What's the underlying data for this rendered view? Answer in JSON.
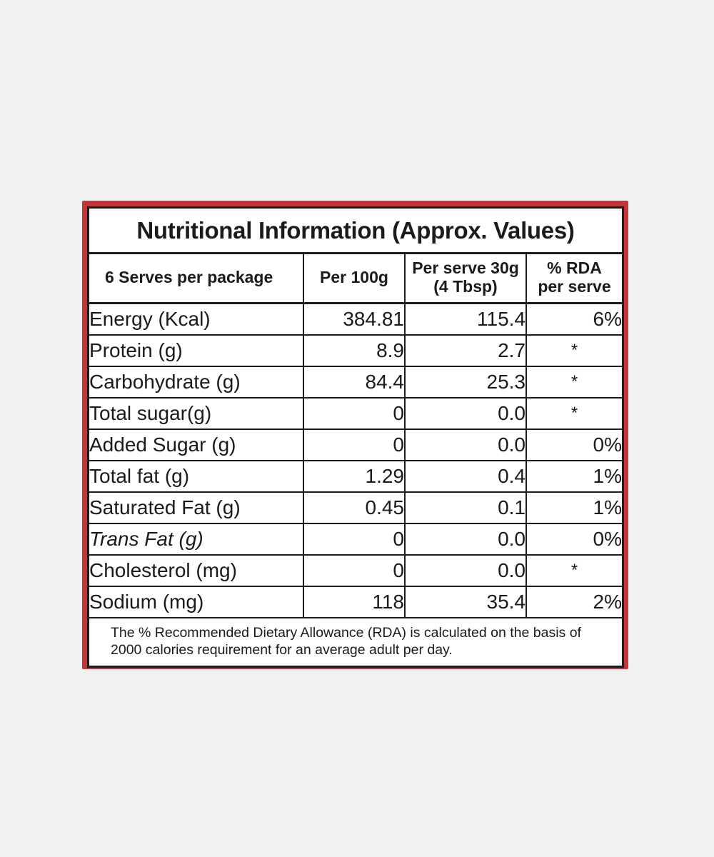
{
  "label": {
    "title": "Nutritional Information (Approx. Values)",
    "headers": {
      "serves": "6 Serves per package",
      "per100_label": "Per 100g",
      "per_serve_line1": "Per serve 30g",
      "per_serve_line2": "(4 Tbsp)",
      "rda_line1": "% RDA",
      "rda_line2": "per serve"
    },
    "rows": [
      {
        "name": "Energy (Kcal)",
        "per100": "384.81",
        "per_serve": "115.4",
        "rda": "6%"
      },
      {
        "name": "Protein  (g)",
        "per100": "8.9",
        "per_serve": "2.7",
        "rda": "*"
      },
      {
        "name": "Carbohydrate (g)",
        "per100": "84.4",
        "per_serve": "25.3",
        "rda": "*"
      },
      {
        "name": "Total sugar(g)",
        "per100": "0",
        "per_serve": "0.0",
        "rda": "*"
      },
      {
        "name": "Added Sugar  (g)",
        "per100": "0",
        "per_serve": "0.0",
        "rda": "0%"
      },
      {
        "name": "Total fat  (g)",
        "per100": "1.29",
        "per_serve": "0.4",
        "rda": "1%"
      },
      {
        "name": "Saturated Fat  (g)",
        "per100": "0.45",
        "per_serve": "0.1",
        "rda": "1%"
      },
      {
        "name": "Trans Fat  (g)",
        "per100": "0",
        "per_serve": "0.0",
        "rda": "0%"
      },
      {
        "name": "Cholesterol  (mg)",
        "per100": "0",
        "per_serve": "0.0",
        "rda": "*"
      },
      {
        "name": "Sodium (mg)",
        "per100": "118",
        "per_serve": "35.4",
        "rda": "2%"
      }
    ],
    "footnote": "The % Recommended Dietary Allowance (RDA) is calculated on the basis of 2000 calories requirement for an average adult per day."
  },
  "colors": {
    "background": "#f1f1f1",
    "package_red": "#c4353a",
    "panel": "#ffffff",
    "ink": "#1b1b1b"
  }
}
